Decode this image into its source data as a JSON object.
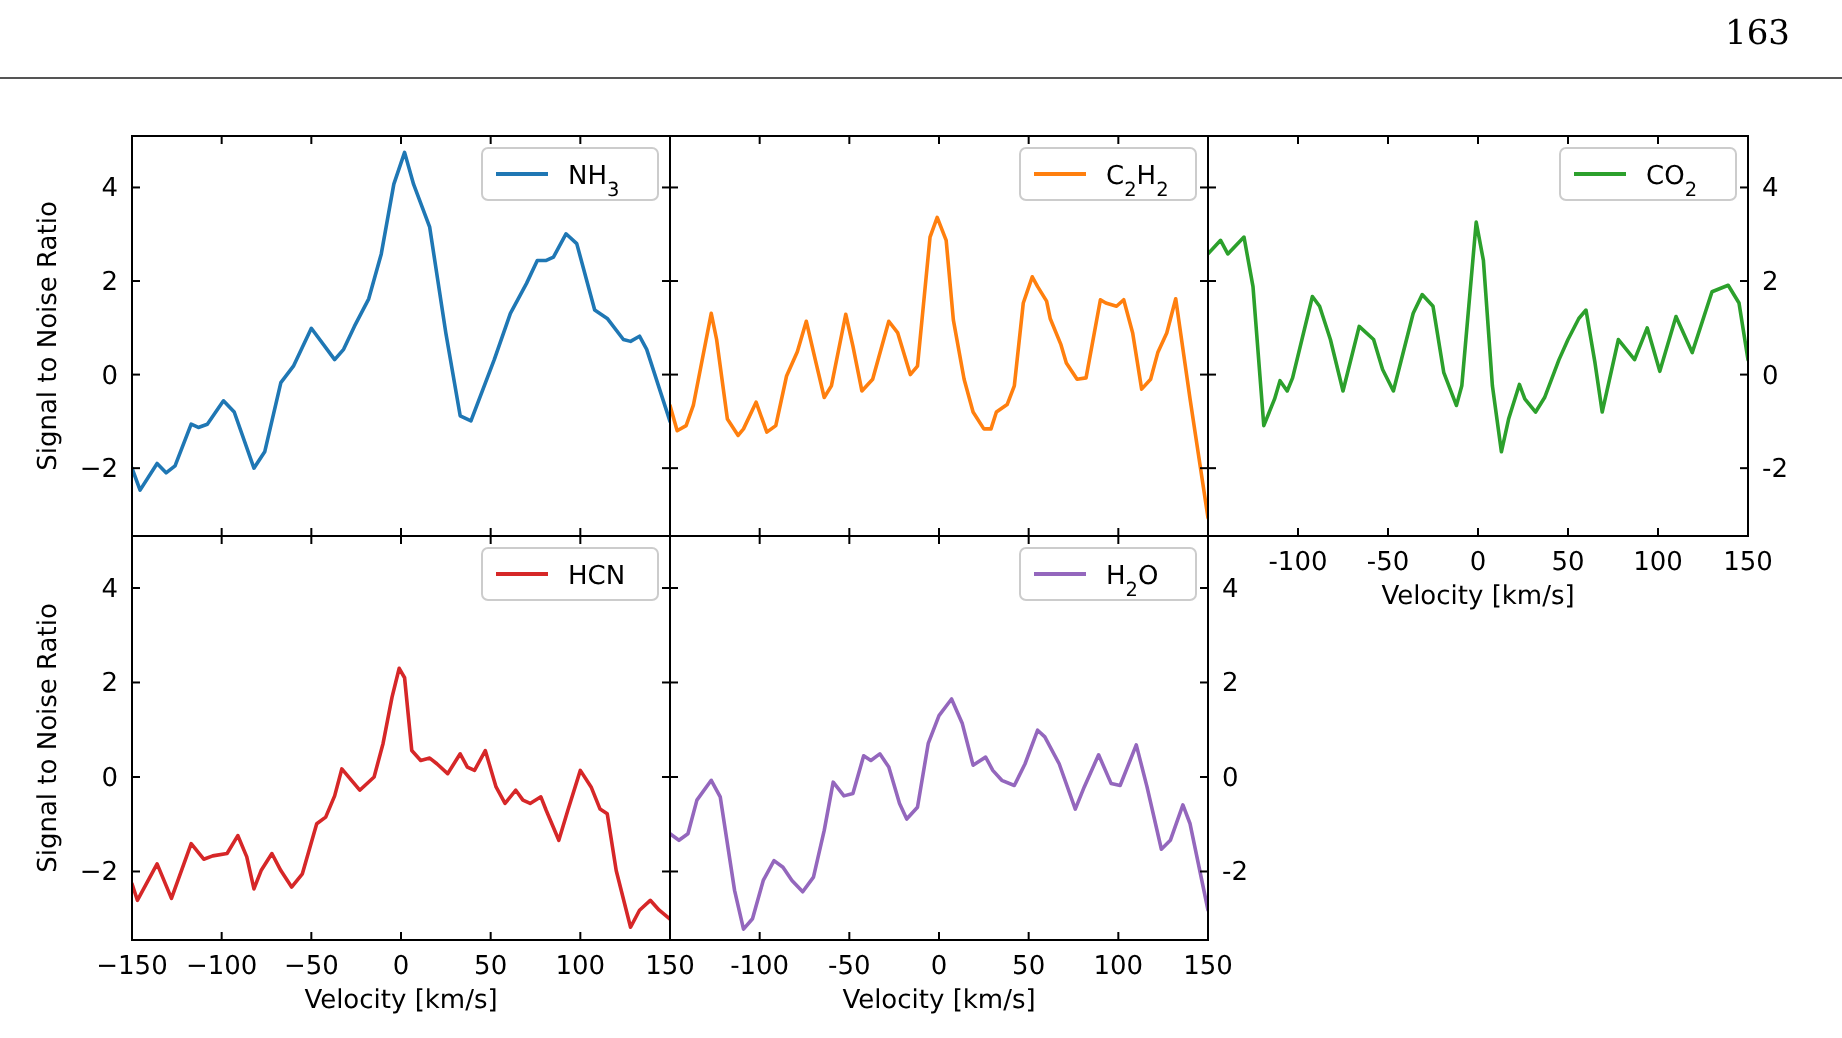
{
  "chart_data": [
    {
      "type": "line",
      "annotations": [
        "163"
      ],
      "ylabel": "Signal to Noise Ratio",
      "xlim": [
        -150,
        150
      ],
      "xticks": [
        -150,
        -100,
        -50,
        0,
        50,
        100,
        150
      ],
      "ylim": [
        -3.45,
        5.1
      ],
      "yticks": [
        {
          "value": -2,
          "label": "−2"
        },
        0,
        2,
        4
      ],
      "tick_labels": "y",
      "legend": "top right",
      "series": [
        {
          "name": "NH$_{3}$",
          "color": "#1f77b4",
          "x": [
            -150,
            -145.5,
            -136,
            -131,
            -126,
            -117,
            -113,
            -108,
            -99,
            -93,
            -82,
            -76,
            -67,
            -60,
            -50,
            -37,
            -32,
            -26,
            -18,
            -11,
            -4,
            2,
            7,
            16,
            25,
            33,
            39,
            52,
            61,
            70,
            76,
            81,
            85,
            92,
            98,
            108,
            115,
            124,
            128,
            133,
            137,
            150
          ],
          "values": [
            -2.0,
            -2.47,
            -1.9,
            -2.1,
            -1.95,
            -1.06,
            -1.13,
            -1.06,
            -0.56,
            -0.8,
            -2.0,
            -1.65,
            -0.17,
            0.18,
            0.99,
            0.32,
            0.54,
            1.03,
            1.62,
            2.58,
            4.07,
            4.75,
            4.07,
            3.15,
            0.89,
            -0.88,
            -0.99,
            0.32,
            1.31,
            1.95,
            2.44,
            2.44,
            2.51,
            3.01,
            2.8,
            1.38,
            1.2,
            0.75,
            0.71,
            0.82,
            0.54,
            -1.0
          ]
        }
      ]
    },
    {
      "type": "line",
      "xlim": [
        -150,
        150
      ],
      "xticks": [
        -150,
        -100,
        -50,
        0,
        50,
        100,
        150
      ],
      "ylim": [
        -3.45,
        5.1
      ],
      "yticks": [
        -2,
        0,
        2,
        4
      ],
      "tick_labels": false,
      "legend": "top right",
      "series": [
        {
          "name": "C$_{2}$H$_{2}$",
          "color": "#ff7f0e",
          "x": [
            -150,
            -146,
            -141,
            -137,
            -127,
            -124,
            -118,
            -112,
            -109,
            -102,
            -96,
            -91,
            -85,
            -79,
            -74,
            -69,
            -64,
            -60,
            -52,
            -48,
            -43,
            -37,
            -28,
            -23,
            -16,
            -12,
            -5,
            -1,
            4,
            8,
            14,
            19,
            25,
            29,
            32,
            38,
            42,
            47,
            52,
            55,
            60,
            62,
            68,
            71,
            77,
            82,
            90,
            93,
            99,
            103,
            108,
            113,
            118,
            122,
            127,
            132,
            140,
            150
          ],
          "values": [
            -0.66,
            -1.2,
            -1.09,
            -0.66,
            1.31,
            0.75,
            -0.95,
            -1.3,
            -1.16,
            -0.59,
            -1.23,
            -1.09,
            -0.03,
            0.49,
            1.14,
            0.32,
            -0.49,
            -0.24,
            1.29,
            0.61,
            -0.35,
            -0.1,
            1.14,
            0.89,
            0,
            0.18,
            2.94,
            3.36,
            2.87,
            1.17,
            -0.1,
            -0.8,
            -1.16,
            -1.16,
            -0.8,
            -0.64,
            -0.24,
            1.53,
            2.09,
            1.88,
            1.57,
            1.2,
            0.64,
            0.25,
            -0.1,
            -0.07,
            1.6,
            1.53,
            1.46,
            1.6,
            0.89,
            -0.31,
            -0.1,
            0.47,
            0.89,
            1.62,
            -0.52,
            -3.06
          ]
        }
      ]
    },
    {
      "type": "line",
      "xlabel": "Velocity [km/s]",
      "xlim": [
        -150,
        150
      ],
      "xticks": [
        {
          "value": -150,
          "label": null
        },
        {
          "value": -100,
          "label": "-100"
        },
        {
          "value": -50,
          "label": "-50"
        },
        0,
        50,
        100,
        150
      ],
      "y2lim": [
        -3.45,
        5.1
      ],
      "y2ticks": [
        {
          "value": -2,
          "label": "-2"
        },
        0,
        2,
        4
      ],
      "legend": "top right",
      "series": [
        {
          "name": "CO$_{2}$",
          "color": "#2ca02c",
          "axis": "y2",
          "x": [
            -150,
            -143,
            -139,
            -130,
            -125,
            -119,
            -113,
            -110,
            -106,
            -103,
            -92,
            -88,
            -82,
            -75,
            -66,
            -58,
            -53,
            -47,
            -36,
            -31,
            -25,
            -19,
            -12,
            -9,
            -1,
            3,
            8,
            13,
            17,
            23,
            26,
            32,
            37,
            45,
            50,
            56,
            60,
            65,
            69,
            78,
            87,
            94,
            101,
            110,
            119,
            130,
            139,
            145,
            150
          ],
          "values": [
            2.58,
            2.87,
            2.58,
            2.94,
            1.88,
            -1.09,
            -0.52,
            -0.13,
            -0.35,
            -0.07,
            1.67,
            1.46,
            0.75,
            -0.35,
            1.03,
            0.75,
            0.11,
            -0.35,
            1.31,
            1.71,
            1.46,
            0.04,
            -0.66,
            -0.24,
            3.26,
            2.44,
            -0.24,
            -1.65,
            -0.95,
            -0.21,
            -0.52,
            -0.8,
            -0.49,
            0.32,
            0.75,
            1.2,
            1.38,
            0.25,
            -0.8,
            0.75,
            0.32,
            1.0,
            0.07,
            1.24,
            0.47,
            1.77,
            1.91,
            1.53,
            0.32
          ]
        }
      ]
    },
    {
      "type": "line",
      "ylabel": "Signal to Noise Ratio",
      "xlabel": "Velocity [km/s]",
      "xlim": [
        -150,
        150
      ],
      "xticks": [
        {
          "value": -150,
          "label": "−150"
        },
        {
          "value": -100,
          "label": "−100"
        },
        {
          "value": -50,
          "label": "−50"
        },
        0,
        50,
        100,
        150
      ],
      "ylim": [
        -3.45,
        5.1
      ],
      "yticks": [
        {
          "value": -2,
          "label": "−2"
        },
        0,
        2,
        4
      ],
      "legend": "top right",
      "series": [
        {
          "name": "HCN",
          "color": "#d62728",
          "x": [
            -150,
            -147,
            -136,
            -128,
            -117,
            -110,
            -105,
            -97,
            -91,
            -86,
            -82,
            -78,
            -72,
            -67,
            -61,
            -55,
            -47,
            -42,
            -37,
            -33,
            -23,
            -15,
            -10,
            -5,
            -1,
            2,
            6,
            11,
            16,
            20,
            26,
            33,
            37,
            41,
            47,
            53,
            58,
            64,
            68,
            72,
            78,
            81,
            88,
            93,
            100,
            106,
            111,
            115,
            120,
            128,
            133,
            139,
            144,
            150
          ],
          "values": [
            -2.26,
            -2.61,
            -1.84,
            -2.57,
            -1.41,
            -1.74,
            -1.67,
            -1.62,
            -1.24,
            -1.69,
            -2.37,
            -1.98,
            -1.62,
            -1.98,
            -2.33,
            -2.05,
            -0.99,
            -0.85,
            -0.4,
            0.17,
            -0.28,
            0,
            0.71,
            1.69,
            2.3,
            2.1,
            0.56,
            0.35,
            0.4,
            0.28,
            0.07,
            0.49,
            0.21,
            0.14,
            0.56,
            -0.21,
            -0.56,
            -0.28,
            -0.49,
            -0.56,
            -0.42,
            -0.71,
            -1.34,
            -0.71,
            0.14,
            -0.21,
            -0.68,
            -0.78,
            -1.98,
            -3.18,
            -2.82,
            -2.61,
            -2.82,
            -3.01
          ]
        }
      ]
    },
    {
      "type": "line",
      "xlabel": "Velocity [km/s]",
      "xlim": [
        -150,
        150
      ],
      "xticks": [
        {
          "value": -150,
          "label": null
        },
        {
          "value": -100,
          "label": "-100"
        },
        {
          "value": -50,
          "label": "-50"
        },
        0,
        50,
        100,
        150
      ],
      "y2lim": [
        -3.45,
        5.1
      ],
      "y2ticks": [
        {
          "value": -2,
          "label": "-2"
        },
        0,
        2,
        4
      ],
      "legend": "top right",
      "series": [
        {
          "name": "H$_{2}$O",
          "color": "#9467bd",
          "axis": "y2",
          "x": [
            -150,
            -145,
            -140,
            -135,
            -127,
            -122,
            -114,
            -109,
            -104,
            -98,
            -92,
            -87,
            -82,
            -76,
            -70,
            -64,
            -59,
            -53,
            -48,
            -42,
            -38,
            -33,
            -28,
            -22,
            -18,
            -12,
            -6,
            0,
            7,
            13,
            19,
            26,
            30,
            35,
            42,
            48,
            55,
            59,
            67,
            76,
            81,
            89,
            96,
            101,
            110,
            116,
            124,
            129,
            136,
            140,
            150
          ],
          "values": [
            -1.2,
            -1.34,
            -1.2,
            -0.49,
            -0.07,
            -0.42,
            -2.4,
            -3.22,
            -3.0,
            -2.19,
            -1.77,
            -1.91,
            -2.19,
            -2.43,
            -2.12,
            -1.13,
            -0.11,
            -0.4,
            -0.35,
            0.45,
            0.35,
            0.49,
            0.21,
            -0.56,
            -0.89,
            -0.64,
            0.71,
            1.3,
            1.65,
            1.13,
            0.25,
            0.42,
            0.14,
            -0.07,
            -0.18,
            0.28,
            0.99,
            0.85,
            0.28,
            -0.68,
            -0.21,
            0.47,
            -0.14,
            -0.18,
            0.68,
            -0.21,
            -1.53,
            -1.34,
            -0.59,
            -0.99,
            -2.82
          ]
        }
      ]
    }
  ]
}
